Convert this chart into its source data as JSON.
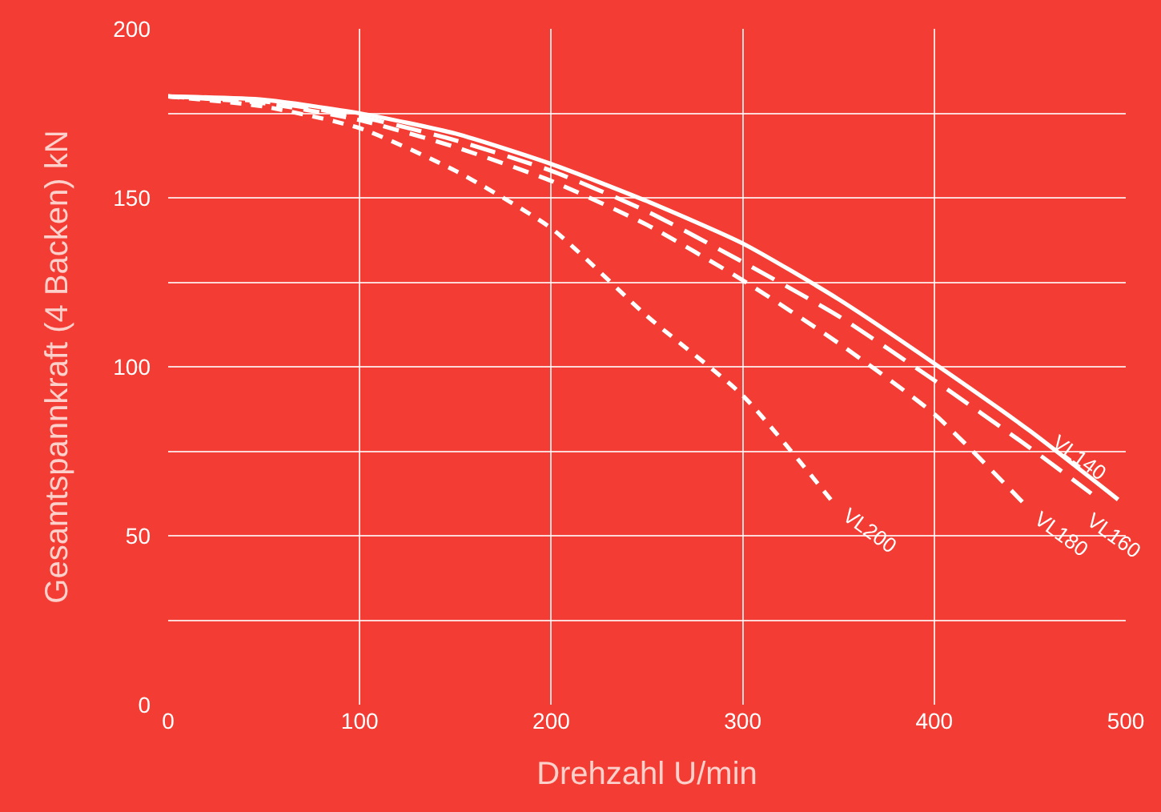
{
  "chart_data": {
    "type": "line",
    "xlabel": "Drehzahl U/min",
    "ylabel": "Gesamtspannkraft (4 Backen) kN",
    "xlim": [
      0,
      500
    ],
    "ylim": [
      0,
      200
    ],
    "xticks": [
      0,
      100,
      200,
      300,
      400,
      500
    ],
    "yticks": [
      0,
      {
        "value": 25,
        "label": null
      },
      50,
      {
        "value": 75,
        "label": null
      },
      100,
      {
        "value": 125,
        "label": null
      },
      150,
      {
        "value": 175,
        "label": null
      },
      200
    ],
    "grid": true,
    "legend": false,
    "marker": "none",
    "series": [
      {
        "name": "VL140",
        "color": "#ffffff",
        "line_style": "solid",
        "x": [
          0,
          50,
          100,
          150,
          200,
          250,
          300,
          350,
          400,
          450,
          496
        ],
        "values": [
          180,
          179,
          175,
          169,
          160,
          149,
          136.5,
          120,
          101,
          81,
          60.7
        ]
      },
      {
        "name": "VL160",
        "color": "#ffffff",
        "line_style": "dashed",
        "x": [
          0,
          50,
          100,
          150,
          200,
          250,
          300,
          350,
          400,
          450,
          482
        ],
        "values": [
          180,
          178.5,
          174,
          167,
          158,
          146,
          131,
          115,
          96,
          76,
          62.5
        ]
      },
      {
        "name": "VL180",
        "color": "#ffffff",
        "line_style": "dashed",
        "x": [
          0,
          50,
          100,
          150,
          200,
          250,
          300,
          350,
          400,
          446
        ],
        "values": [
          180,
          178,
          173,
          165,
          155,
          142,
          125.6,
          107,
          86,
          60
        ]
      },
      {
        "name": "VL200",
        "color": "#ffffff",
        "line_style": "dotted",
        "x": [
          0,
          50,
          100,
          150,
          200,
          250,
          300,
          346
        ],
        "values": [
          180,
          177,
          170.6,
          158,
          141,
          115,
          91.5,
          60.7
        ]
      }
    ]
  }
}
